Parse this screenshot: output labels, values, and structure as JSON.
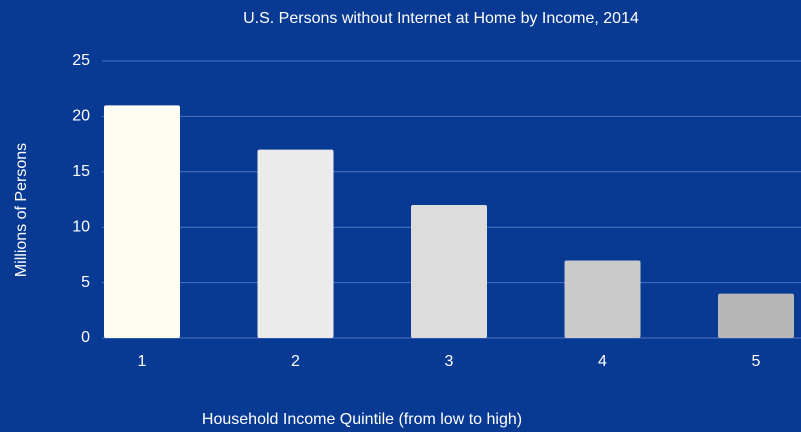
{
  "chart_data": {
    "type": "bar",
    "title": "U.S. Persons without Internet at Home by Income, 2014",
    "x_label": "Household Income Quintile  (from low to high)",
    "y_label": "Millions of Persons",
    "categories": [
      "1",
      "2",
      "3",
      "4",
      "5"
    ],
    "values": [
      21,
      17,
      12,
      7,
      4
    ],
    "colors": [
      "#fffcf3",
      "#ebebeb",
      "#dcdcdc",
      "#cacaca",
      "#b7b7b7"
    ],
    "ylim": [
      0,
      25
    ],
    "yticks": [
      0,
      5,
      10,
      15,
      20,
      25
    ],
    "grid": true
  }
}
